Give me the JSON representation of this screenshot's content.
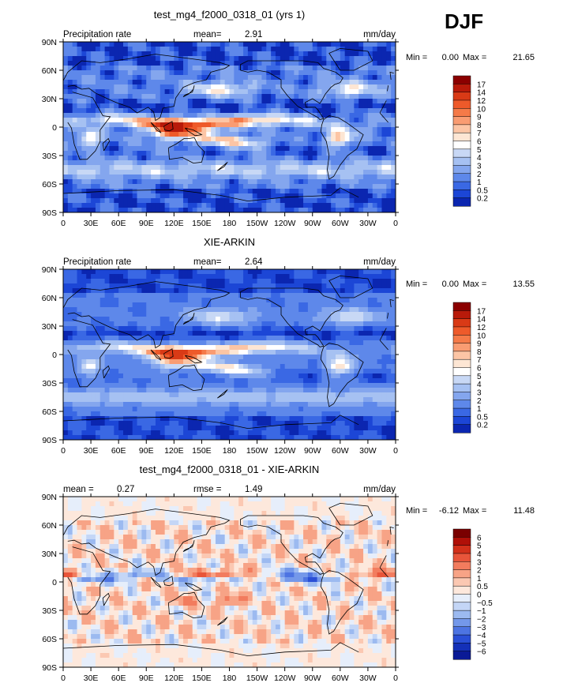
{
  "season": "DJF",
  "chart_data": [
    {
      "type": "heatmap",
      "title": "test_mg4_f2000_0318_01 (yrs 1)",
      "left_label": "Precipitation rate",
      "stat_label": "mean=",
      "stat_value": "2.91",
      "units": "mm/day",
      "min_label": "Min =",
      "min_value": "0.00",
      "max_label": "Max =",
      "max_value": "21.65",
      "x_ticks": [
        "0",
        "30E",
        "60E",
        "90E",
        "120E",
        "150E",
        "180",
        "150W",
        "120W",
        "90W",
        "60W",
        "30W",
        "0"
      ],
      "y_ticks": [
        "90N",
        "60N",
        "30N",
        "0",
        "30S",
        "60S",
        "90S"
      ],
      "colorbar_levels": [
        "17",
        "14",
        "12",
        "10",
        "9",
        "8",
        "7",
        "6",
        "5",
        "4",
        "3",
        "2",
        "1",
        "0.5",
        "0.2"
      ],
      "colorbar_colors": [
        "#8b0000",
        "#b81a0a",
        "#d93a16",
        "#ee5a2a",
        "#f57a48",
        "#f99c72",
        "#fcc5a5",
        "#fde6d4",
        "#ffffff",
        "#c8d8f5",
        "#a6c1f2",
        "#84a6ee",
        "#5e88ea",
        "#3a68e4",
        "#1c46d6",
        "#0b26b0"
      ]
    },
    {
      "type": "heatmap",
      "title": "XIE-ARKIN",
      "left_label": "Precipitation rate",
      "stat_label": "mean=",
      "stat_value": "2.64",
      "units": "mm/day",
      "min_label": "Min =",
      "min_value": "0.00",
      "max_label": "Max =",
      "max_value": "13.55",
      "x_ticks": [
        "0",
        "30E",
        "60E",
        "90E",
        "120E",
        "150E",
        "180",
        "150W",
        "120W",
        "90W",
        "60W",
        "30W",
        "0"
      ],
      "y_ticks": [
        "90N",
        "60N",
        "30N",
        "0",
        "30S",
        "60S",
        "90S"
      ],
      "colorbar_levels": [
        "17",
        "14",
        "12",
        "10",
        "9",
        "8",
        "7",
        "6",
        "5",
        "4",
        "3",
        "2",
        "1",
        "0.5",
        "0.2"
      ],
      "colorbar_colors": [
        "#8b0000",
        "#b81a0a",
        "#d93a16",
        "#ee5a2a",
        "#f57a48",
        "#f99c72",
        "#fcc5a5",
        "#fde6d4",
        "#ffffff",
        "#c8d8f5",
        "#a6c1f2",
        "#84a6ee",
        "#5e88ea",
        "#3a68e4",
        "#1c46d6",
        "#0b26b0"
      ]
    },
    {
      "type": "heatmap",
      "title": "test_mg4_f2000_0318_01 - XIE-ARKIN",
      "left_label": "mean =",
      "left_value": "0.27",
      "stat_label": "rmse =",
      "stat_value": "1.49",
      "units": "mm/day",
      "min_label": "Min =",
      "min_value": "-6.12",
      "max_label": "Max =",
      "max_value": "11.48",
      "x_ticks": [
        "0",
        "30E",
        "60E",
        "90E",
        "120E",
        "150E",
        "180",
        "150W",
        "120W",
        "90W",
        "60W",
        "30W",
        "0"
      ],
      "y_ticks": [
        "90N",
        "60N",
        "30N",
        "0",
        "30S",
        "60S",
        "90S"
      ],
      "colorbar_levels": [
        "6",
        "5",
        "4",
        "3",
        "2",
        "1",
        "0.5",
        "0",
        "−0.5",
        "−1",
        "−2",
        "−3",
        "−4",
        "−5",
        "−6"
      ],
      "colorbar_colors": [
        "#7a0000",
        "#b01008",
        "#d2301a",
        "#e8553a",
        "#f27c5e",
        "#f7a386",
        "#fbc8b2",
        "#fde8dc",
        "#e6eefb",
        "#c4d6f6",
        "#9cbaf0",
        "#7498ea",
        "#4d74e2",
        "#2a4fd6",
        "#1430b8",
        "#0a1a96"
      ]
    }
  ]
}
